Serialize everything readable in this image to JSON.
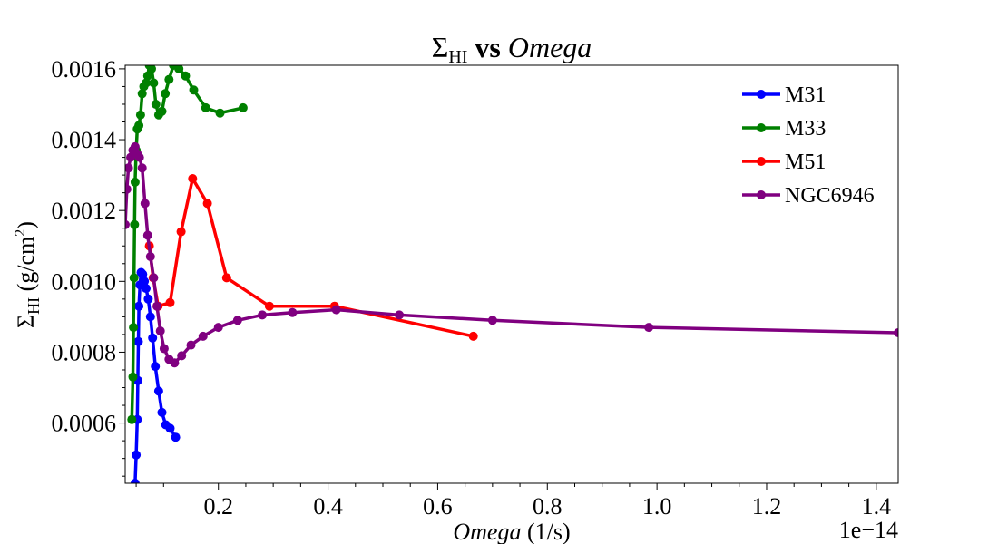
{
  "chart_data": {
    "type": "line",
    "title": {
      "sigma": "Σ",
      "sub": "HI",
      "vs": " vs ",
      "var": "Omega"
    },
    "xlabel": {
      "var": "Omega",
      "unit": " (1/s)"
    },
    "ylabel": {
      "sigma": "Σ",
      "sub": "HI",
      "unit_pre": " (g/cm",
      "sup": "2",
      "unit_post": ")"
    },
    "x_offset_label": "1e−14",
    "xlim": [
      0.03,
      1.44
    ],
    "ylim": [
      0.00043,
      0.00161
    ],
    "xticks": [
      0.2,
      0.4,
      0.6,
      0.8,
      1.0,
      1.2,
      1.4
    ],
    "xtick_labels": [
      "0.2",
      "0.4",
      "0.6",
      "0.8",
      "1.0",
      "1.2",
      "1.4"
    ],
    "yticks": [
      0.0006,
      0.0008,
      0.001,
      0.0012,
      0.0014,
      0.0016
    ],
    "ytick_labels": [
      "0.0006",
      "0.0008",
      "0.0010",
      "0.0012",
      "0.0014",
      "0.0016"
    ],
    "legend_position": "top-right",
    "series": [
      {
        "name": "M31",
        "color": "#0000ff",
        "points": [
          [
            0.048,
            0.00043
          ],
          [
            0.05,
            0.00051
          ],
          [
            0.052,
            0.00061
          ],
          [
            0.053,
            0.00072
          ],
          [
            0.054,
            0.00083
          ],
          [
            0.055,
            0.00093
          ],
          [
            0.057,
            0.00099
          ],
          [
            0.059,
            0.001025
          ],
          [
            0.062,
            0.00102
          ],
          [
            0.065,
            0.001
          ],
          [
            0.068,
            0.00098
          ],
          [
            0.072,
            0.00095
          ],
          [
            0.076,
            0.0009
          ],
          [
            0.08,
            0.00084
          ],
          [
            0.085,
            0.00076
          ],
          [
            0.091,
            0.00069
          ],
          [
            0.097,
            0.00063
          ],
          [
            0.104,
            0.000595
          ],
          [
            0.112,
            0.000585
          ],
          [
            0.122,
            0.00056
          ]
        ]
      },
      {
        "name": "M33",
        "color": "#008000",
        "points": [
          [
            0.042,
            0.00061
          ],
          [
            0.044,
            0.00073
          ],
          [
            0.045,
            0.00087
          ],
          [
            0.046,
            0.00101
          ],
          [
            0.047,
            0.00116
          ],
          [
            0.048,
            0.00128
          ],
          [
            0.05,
            0.00137
          ],
          [
            0.052,
            0.00143
          ],
          [
            0.055,
            0.00144
          ],
          [
            0.058,
            0.00147
          ],
          [
            0.061,
            0.00153
          ],
          [
            0.064,
            0.00155
          ],
          [
            0.068,
            0.00156
          ],
          [
            0.071,
            0.00158
          ],
          [
            0.074,
            0.00161
          ],
          [
            0.078,
            0.0016
          ],
          [
            0.082,
            0.00156
          ],
          [
            0.086,
            0.0015
          ],
          [
            0.091,
            0.00147
          ],
          [
            0.097,
            0.00148
          ],
          [
            0.103,
            0.00153
          ],
          [
            0.11,
            0.00157
          ],
          [
            0.118,
            0.00161
          ],
          [
            0.128,
            0.0016
          ],
          [
            0.14,
            0.00158
          ],
          [
            0.155,
            0.00154
          ],
          [
            0.177,
            0.00149
          ],
          [
            0.203,
            0.001475
          ],
          [
            0.245,
            0.00149
          ]
        ]
      },
      {
        "name": "M51",
        "color": "#ff0000",
        "points": [
          [
            0.074,
            0.0011
          ],
          [
            0.081,
            0.00101
          ],
          [
            0.09,
            0.00093
          ],
          [
            0.112,
            0.00094
          ],
          [
            0.132,
            0.00114
          ],
          [
            0.153,
            0.00129
          ],
          [
            0.18,
            0.00122
          ],
          [
            0.215,
            0.00101
          ],
          [
            0.293,
            0.00093
          ],
          [
            0.412,
            0.00093
          ],
          [
            0.665,
            0.000845
          ]
        ]
      },
      {
        "name": "NGC6946",
        "color": "#800080",
        "points": [
          [
            0.03,
            0.00116
          ],
          [
            0.033,
            0.00126
          ],
          [
            0.036,
            0.00132
          ],
          [
            0.04,
            0.00135
          ],
          [
            0.044,
            0.00137
          ],
          [
            0.048,
            0.00138
          ],
          [
            0.052,
            0.00136
          ],
          [
            0.056,
            0.00135
          ],
          [
            0.061,
            0.00132
          ],
          [
            0.066,
            0.00122
          ],
          [
            0.071,
            0.00113
          ],
          [
            0.076,
            0.00107
          ],
          [
            0.082,
            0.00101
          ],
          [
            0.088,
            0.00093
          ],
          [
            0.094,
            0.00086
          ],
          [
            0.101,
            0.00081
          ],
          [
            0.11,
            0.00078
          ],
          [
            0.12,
            0.00077
          ],
          [
            0.133,
            0.00079
          ],
          [
            0.15,
            0.00082
          ],
          [
            0.172,
            0.000845
          ],
          [
            0.2,
            0.00087
          ],
          [
            0.235,
            0.00089
          ],
          [
            0.28,
            0.000905
          ],
          [
            0.335,
            0.000912
          ],
          [
            0.415,
            0.00092
          ],
          [
            0.53,
            0.000905
          ],
          [
            0.7,
            0.00089
          ],
          [
            0.985,
            0.00087
          ],
          [
            1.44,
            0.000855
          ]
        ]
      }
    ]
  }
}
